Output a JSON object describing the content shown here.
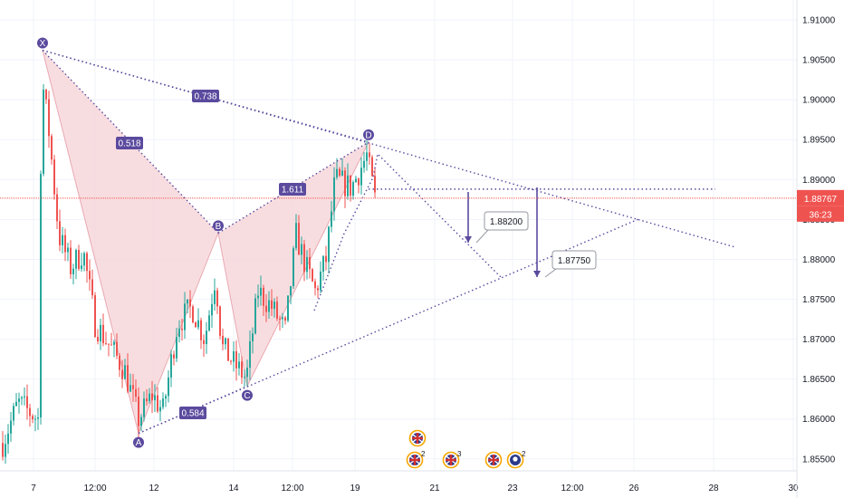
{
  "chart_data": {
    "type": "candlestick",
    "price_axis": {
      "ticks": [
        "1.91000",
        "1.90500",
        "1.90000",
        "1.89500",
        "1.89000",
        "1.88500",
        "1.88000",
        "1.87500",
        "1.87000",
        "1.86500",
        "1.86000",
        "1.85500"
      ],
      "range": [
        1.8535,
        1.9125
      ]
    },
    "time_axis": {
      "ticks": [
        "7",
        "12:00",
        "12",
        "14",
        "12:00",
        "19",
        "21",
        "23",
        "12:00",
        "26",
        "28",
        "30"
      ]
    },
    "last_price": {
      "value": "1.88767",
      "countdown": "36:23",
      "color": "#ef5350"
    },
    "pattern": {
      "name": "XABCD",
      "points": {
        "X": 1.9062,
        "A": 1.8582,
        "B": 1.8833,
        "C": 1.8641,
        "D": 1.8947
      },
      "ratios": {
        "XB": "0.518",
        "AC": "0.584",
        "BD": "1.611",
        "XD": "0.738"
      },
      "fill_color": "#f6d5d8",
      "line_color": "#5b4a9e"
    },
    "targets": [
      "1.88200",
      "1.87750"
    ],
    "events": [
      {
        "icon": "uk-flag-icon",
        "count": ""
      },
      {
        "icon": "uk-flag-icon",
        "count": "2"
      },
      {
        "icon": "uk-flag-icon",
        "count": "3"
      },
      {
        "icon": "uk-flag-icon",
        "count": ""
      },
      {
        "icon": "jp-flag-icon",
        "count": "2"
      }
    ],
    "colors": {
      "up": "#26a69a",
      "down": "#ef5350",
      "accent": "#5b4a9e"
    }
  }
}
